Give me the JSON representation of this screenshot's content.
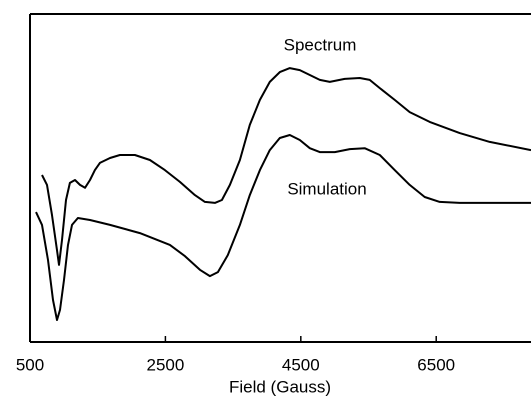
{
  "chart_data": {
    "type": "line",
    "x_label": "Field (Gauss)",
    "xlim": [
      500,
      7900
    ],
    "xticks": [
      500,
      2500,
      4500,
      6500
    ],
    "ylim": [
      0,
      100
    ],
    "x": [],
    "series": [
      {
        "name": "Spectrum",
        "color": "#000000",
        "x": [
          677,
          751,
          825,
          899,
          928,
          972,
          1031,
          1090,
          1164,
          1238,
          1312,
          1386,
          1459,
          1533,
          1681,
          1828,
          2050,
          2271,
          2493,
          2714,
          2935,
          3083,
          3231,
          3334,
          3452,
          3600,
          3747,
          3895,
          4042,
          4190,
          4338,
          4485,
          4633,
          4780,
          4928,
          5149,
          5371,
          5518,
          5666,
          5887,
          6109,
          6404,
          6847,
          7290,
          7900
        ],
        "values": [
          50.9,
          47.9,
          38.7,
          28.0,
          23.5,
          31.1,
          43.3,
          48.5,
          49.4,
          47.9,
          47.0,
          49.4,
          52.4,
          54.6,
          56.1,
          57.0,
          57.0,
          55.5,
          52.4,
          48.8,
          44.8,
          42.7,
          42.4,
          43.3,
          47.9,
          55.5,
          66.2,
          73.8,
          79.3,
          82.3,
          83.5,
          82.9,
          81.4,
          79.9,
          79.3,
          80.2,
          80.5,
          79.9,
          77.4,
          73.8,
          70.1,
          67.1,
          63.7,
          61.0,
          58.5
        ]
      },
      {
        "name": "Simulation",
        "color": "#000000",
        "x": [
          589,
          677,
          766,
          840,
          899,
          943,
          1002,
          1061,
          1120,
          1208,
          1386,
          1681,
          2124,
          2566,
          2788,
          3009,
          3157,
          3275,
          3422,
          3600,
          3747,
          3895,
          4042,
          4190,
          4338,
          4485,
          4633,
          4780,
          5002,
          5223,
          5444,
          5666,
          5887,
          6109,
          6330,
          6552,
          6847,
          7900
        ],
        "values": [
          39.6,
          35.7,
          25.0,
          12.8,
          6.7,
          9.8,
          18.9,
          29.6,
          35.7,
          37.8,
          37.2,
          35.7,
          33.2,
          29.6,
          26.2,
          22.0,
          20.1,
          21.3,
          26.5,
          35.7,
          44.8,
          52.4,
          58.5,
          62.2,
          63.1,
          61.6,
          59.1,
          57.9,
          57.9,
          58.8,
          59.1,
          57.0,
          52.4,
          47.9,
          44.2,
          42.7,
          42.4,
          42.4
        ]
      }
    ]
  }
}
